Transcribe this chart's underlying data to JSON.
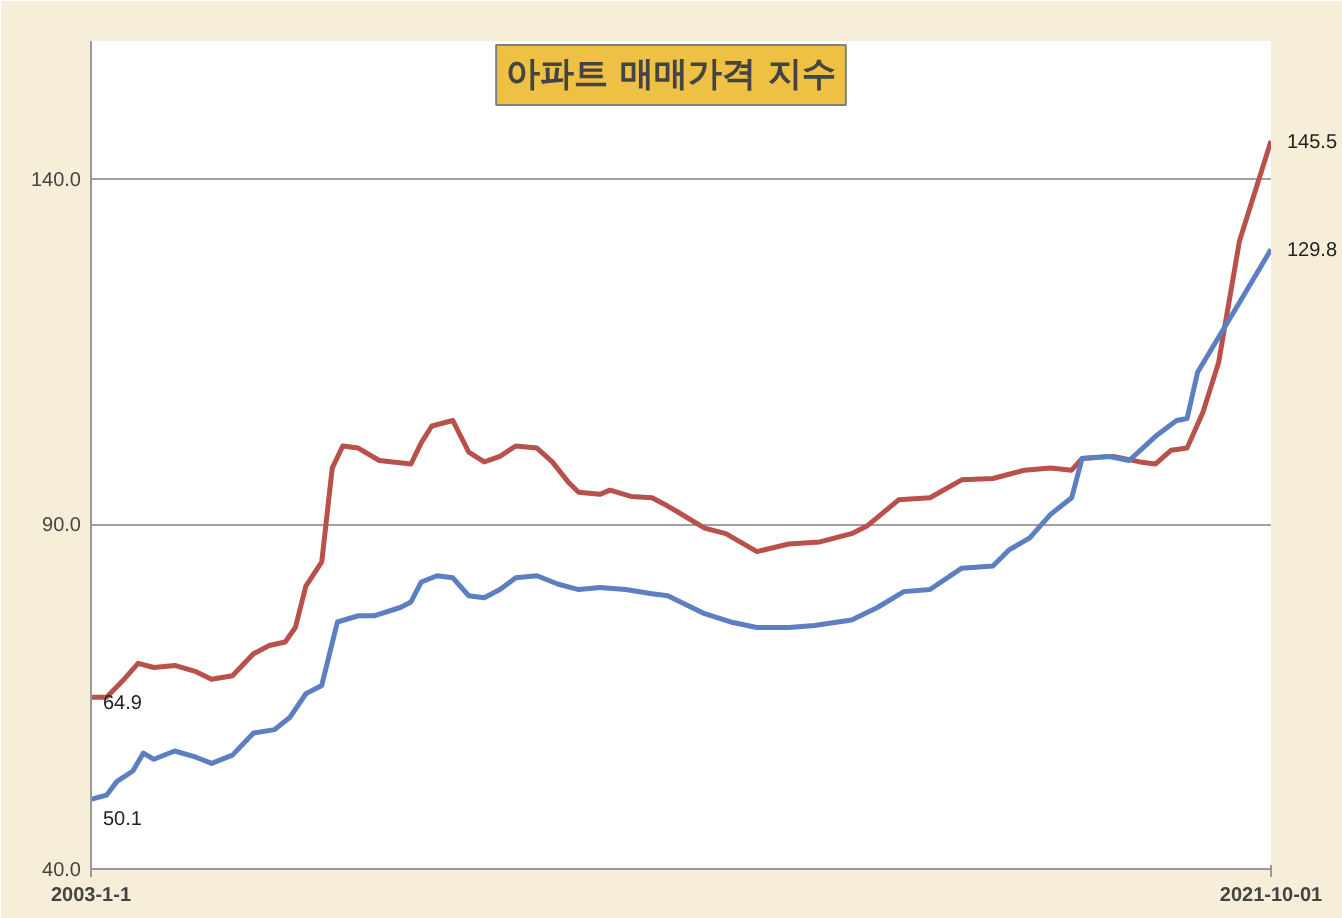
{
  "chart_data": {
    "type": "line",
    "title": "아파트 매매가격 지수",
    "xlim": [
      "2003-01",
      "2021-10"
    ],
    "ylim": [
      40,
      160
    ],
    "xticks": [
      {
        "value": "2003-01",
        "label": "2003-1-1"
      },
      {
        "value": "2021-10",
        "label": "2021-10-01"
      }
    ],
    "yticks": [
      {
        "value": 40,
        "label": "40.0"
      },
      {
        "value": 90,
        "label": "90.0"
      },
      {
        "value": 140,
        "label": "140.0"
      }
    ],
    "grid": "y",
    "marker": "none",
    "line_style": "solid",
    "series": [
      {
        "color": "#b8504b",
        "x": [
          "2003-01",
          "2003-04",
          "2003-07",
          "2003-10",
          "2004-01",
          "2004-05",
          "2004-09",
          "2004-12",
          "2005-04",
          "2005-08",
          "2005-11",
          "2006-02",
          "2006-04",
          "2006-06",
          "2006-09",
          "2006-11",
          "2007-01",
          "2007-04",
          "2007-08",
          "2008-02",
          "2008-04",
          "2008-06",
          "2008-10",
          "2009-01",
          "2009-04",
          "2009-07",
          "2009-10",
          "2010-02",
          "2010-05",
          "2010-08",
          "2010-10",
          "2011-02",
          "2011-04",
          "2011-08",
          "2011-12",
          "2012-03",
          "2012-05",
          "2012-10",
          "2013-02",
          "2013-08",
          "2014-02",
          "2014-08",
          "2015-02",
          "2015-05",
          "2015-11",
          "2016-05",
          "2016-11",
          "2017-05",
          "2017-11",
          "2018-04",
          "2018-08",
          "2018-10",
          "2019-04",
          "2019-09",
          "2019-12",
          "2020-03",
          "2020-06",
          "2020-09",
          "2020-12",
          "2021-04",
          "2021-10"
        ],
        "values": [
          64.9,
          64.9,
          67.2,
          69.8,
          69.2,
          69.5,
          68.6,
          67.5,
          68.0,
          71.2,
          72.4,
          72.9,
          75.0,
          81.0,
          84.5,
          98.1,
          101.3,
          101.0,
          99.2,
          98.7,
          101.8,
          104.2,
          105.0,
          100.4,
          99.0,
          99.8,
          101.3,
          101.0,
          99.0,
          96.1,
          94.6,
          94.3,
          94.9,
          94.0,
          93.8,
          92.6,
          91.7,
          89.4,
          88.6,
          86.0,
          87.1,
          87.4,
          88.6,
          89.7,
          93.5,
          93.8,
          96.4,
          96.6,
          97.8,
          98.1,
          97.8,
          99.5,
          99.8,
          99.0,
          98.7,
          100.7,
          101.0,
          106.2,
          113.4,
          131.0,
          145.5
        ],
        "value_labels": [
          "64.9",
          null,
          null,
          null,
          null,
          null,
          null,
          null,
          null,
          null,
          null,
          null,
          null,
          null,
          null,
          null,
          null,
          null,
          null,
          null,
          null,
          null,
          null,
          null,
          null,
          null,
          null,
          null,
          null,
          null,
          null,
          null,
          null,
          null,
          null,
          null,
          null,
          null,
          null,
          null,
          null,
          null,
          null,
          null,
          null,
          null,
          null,
          null,
          null,
          null,
          null,
          null,
          null,
          null,
          null,
          null,
          null,
          null,
          null,
          null,
          "145.5"
        ]
      },
      {
        "color": "#5b7fc1",
        "x": [
          "2003-01",
          "2003-04",
          "2003-06",
          "2003-09",
          "2003-11",
          "2004-01",
          "2004-05",
          "2004-09",
          "2004-12",
          "2005-04",
          "2005-08",
          "2005-12",
          "2006-03",
          "2006-06",
          "2006-09",
          "2006-12",
          "2007-04",
          "2007-07",
          "2007-12",
          "2008-02",
          "2008-04",
          "2008-07",
          "2008-10",
          "2009-01",
          "2009-04",
          "2009-07",
          "2009-10",
          "2010-02",
          "2010-06",
          "2010-10",
          "2011-02",
          "2011-07",
          "2011-12",
          "2012-03",
          "2012-10",
          "2013-03",
          "2013-08",
          "2014-02",
          "2014-07",
          "2015-02",
          "2015-07",
          "2015-12",
          "2016-05",
          "2016-11",
          "2017-05",
          "2017-08",
          "2017-12",
          "2018-04",
          "2018-08",
          "2018-10",
          "2019-03",
          "2019-07",
          "2019-12",
          "2020-04",
          "2020-06",
          "2020-08",
          "2021-04",
          "2021-10"
        ],
        "values": [
          50.1,
          50.7,
          52.7,
          54.2,
          56.8,
          55.9,
          57.1,
          56.2,
          55.3,
          56.5,
          59.7,
          60.2,
          62.0,
          65.4,
          66.6,
          75.8,
          76.7,
          76.7,
          77.9,
          78.7,
          81.6,
          82.5,
          82.2,
          79.6,
          79.3,
          80.5,
          82.2,
          82.5,
          81.3,
          80.5,
          80.8,
          80.5,
          79.9,
          79.6,
          77.0,
          75.8,
          75.0,
          75.0,
          75.3,
          76.1,
          77.9,
          80.2,
          80.5,
          83.6,
          83.9,
          86.2,
          88.0,
          91.4,
          93.8,
          99.5,
          99.8,
          99.2,
          102.7,
          105.0,
          105.3,
          112.0,
          122.1,
          129.8
        ],
        "value_labels": [
          "50.1",
          null,
          null,
          null,
          null,
          null,
          null,
          null,
          null,
          null,
          null,
          null,
          null,
          null,
          null,
          null,
          null,
          null,
          null,
          null,
          null,
          null,
          null,
          null,
          null,
          null,
          null,
          null,
          null,
          null,
          null,
          null,
          null,
          null,
          null,
          null,
          null,
          null,
          null,
          null,
          null,
          null,
          null,
          null,
          null,
          null,
          null,
          null,
          null,
          null,
          null,
          null,
          null,
          null,
          null,
          null,
          null,
          "129.8"
        ]
      }
    ]
  }
}
